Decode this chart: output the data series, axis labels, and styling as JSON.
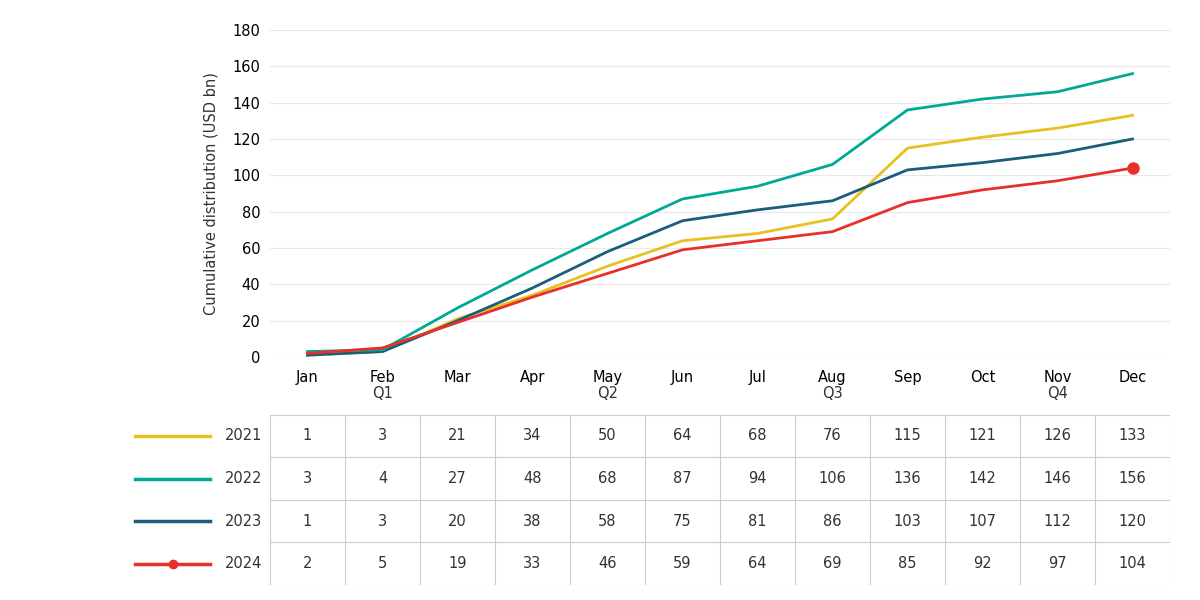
{
  "months": [
    "Jan",
    "Feb",
    "Mar",
    "Apr",
    "May",
    "Jun",
    "Jul",
    "Aug",
    "Sep",
    "Oct",
    "Nov",
    "Dec"
  ],
  "quarter_labels": {
    "Feb": "Q1",
    "May": "Q2",
    "Aug": "Q3",
    "Nov": "Q4"
  },
  "series": [
    {
      "year": "2021",
      "color": "#E8C020",
      "values": [
        1,
        3,
        21,
        34,
        50,
        64,
        68,
        76,
        115,
        121,
        126,
        133
      ],
      "linewidth": 2.0,
      "zorder": 3,
      "marker_last_only": false
    },
    {
      "year": "2022",
      "color": "#00A896",
      "values": [
        3,
        4,
        27,
        48,
        68,
        87,
        94,
        106,
        136,
        142,
        146,
        156
      ],
      "linewidth": 2.0,
      "zorder": 4,
      "marker_last_only": false
    },
    {
      "year": "2023",
      "color": "#1B5E7B",
      "values": [
        1,
        3,
        20,
        38,
        58,
        75,
        81,
        86,
        103,
        107,
        112,
        120
      ],
      "linewidth": 2.0,
      "zorder": 3,
      "marker_last_only": false
    },
    {
      "year": "2024",
      "color": "#E8302A",
      "values": [
        2,
        5,
        19,
        33,
        46,
        59,
        64,
        69,
        85,
        92,
        97,
        104
      ],
      "linewidth": 2.0,
      "zorder": 5,
      "marker_last_only": true
    }
  ],
  "ylabel": "Cumulative distribution (USD bn)",
  "ylim": [
    0,
    180
  ],
  "yticks": [
    0,
    20,
    40,
    60,
    80,
    100,
    120,
    140,
    160,
    180
  ],
  "table_border_color": "#CCCCCC",
  "background_color": "#FFFFFF",
  "font_color": "#333333",
  "font_size": 10.5,
  "ylabel_fontsize": 10.5
}
